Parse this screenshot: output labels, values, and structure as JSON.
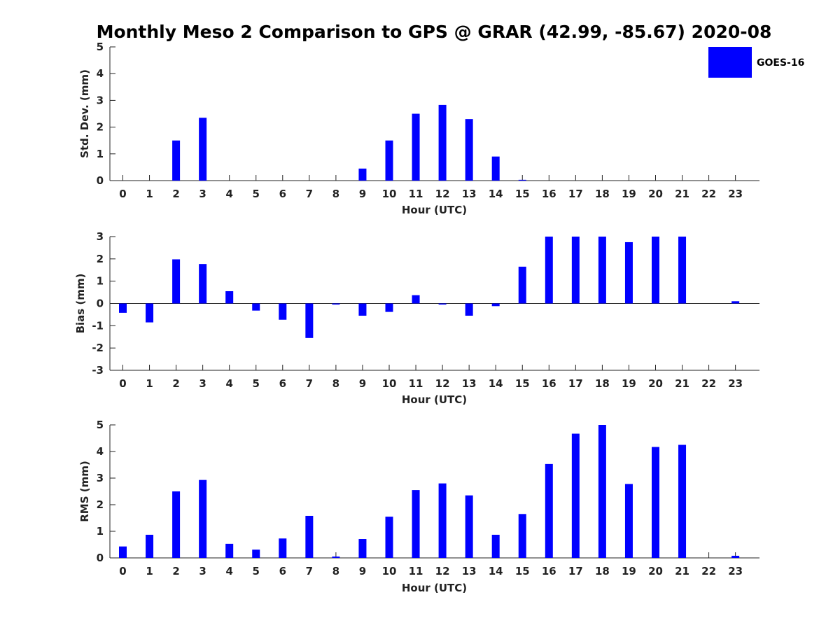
{
  "figure": {
    "title": "Monthly Meso 2 Comparison to GPS @ GRAR (42.99, -85.67) 2020-08",
    "legend": {
      "label": "GOES-16",
      "color": "#0000ff",
      "placement": "top-right"
    }
  },
  "chart_data": [
    {
      "type": "bar",
      "categories": [
        "0",
        "1",
        "2",
        "3",
        "4",
        "5",
        "6",
        "7",
        "8",
        "9",
        "10",
        "11",
        "12",
        "13",
        "14",
        "15",
        "16",
        "17",
        "18",
        "19",
        "20",
        "21",
        "22",
        "23"
      ],
      "series": [
        {
          "name": "GOES-16",
          "color": "#0000ff",
          "values": [
            0,
            0,
            1.5,
            2.35,
            0,
            0,
            0,
            0,
            0,
            0.45,
            1.5,
            2.5,
            2.83,
            2.3,
            0.9,
            0.03,
            0,
            0,
            0,
            0,
            0,
            0,
            0,
            0
          ]
        }
      ],
      "xlabel": "Hour (UTC)",
      "ylabel": "Std. Dev. (mm)",
      "ylim": [
        0,
        5
      ],
      "yticks": [
        "0",
        "1",
        "2",
        "3",
        "4",
        "5"
      ],
      "grid": false
    },
    {
      "type": "bar",
      "categories": [
        "0",
        "1",
        "2",
        "3",
        "4",
        "5",
        "6",
        "7",
        "8",
        "9",
        "10",
        "11",
        "12",
        "13",
        "14",
        "15",
        "16",
        "17",
        "18",
        "19",
        "20",
        "21",
        "22",
        "23"
      ],
      "series": [
        {
          "name": "GOES-16",
          "color": "#0000ff",
          "values": [
            -0.42,
            -0.85,
            1.98,
            1.77,
            0.55,
            -0.32,
            -0.73,
            -1.55,
            -0.05,
            -0.55,
            -0.38,
            0.37,
            -0.05,
            -0.55,
            -0.12,
            1.65,
            3.0,
            3.0,
            3.0,
            2.75,
            3.0,
            3.0,
            0,
            0.1
          ]
        }
      ],
      "xlabel": "Hour (UTC)",
      "ylabel": "Bias (mm)",
      "ylim": [
        -3,
        3
      ],
      "yticks": [
        "-3",
        "-2",
        "-1",
        "0",
        "1",
        "2",
        "3"
      ],
      "grid": false
    },
    {
      "type": "bar",
      "categories": [
        "0",
        "1",
        "2",
        "3",
        "4",
        "5",
        "6",
        "7",
        "8",
        "9",
        "10",
        "11",
        "12",
        "13",
        "14",
        "15",
        "16",
        "17",
        "18",
        "19",
        "20",
        "21",
        "22",
        "23"
      ],
      "series": [
        {
          "name": "GOES-16",
          "color": "#0000ff",
          "values": [
            0.43,
            0.87,
            2.5,
            2.93,
            0.53,
            0.31,
            0.73,
            1.58,
            0.05,
            0.71,
            1.55,
            2.55,
            2.8,
            2.35,
            0.87,
            1.65,
            3.53,
            4.67,
            5.0,
            2.78,
            4.17,
            4.25,
            0,
            0.08
          ]
        }
      ],
      "xlabel": "Hour (UTC)",
      "ylabel": "RMS (mm)",
      "ylim": [
        0,
        5
      ],
      "yticks": [
        "0",
        "1",
        "2",
        "3",
        "4",
        "5"
      ],
      "grid": false
    }
  ]
}
